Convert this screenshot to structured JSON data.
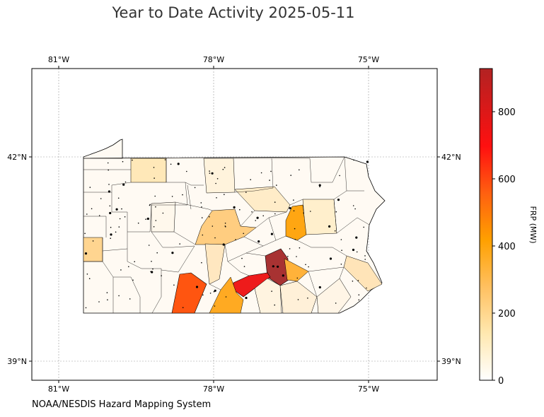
{
  "title": "Year to Date Activity 2025-05-11",
  "credit": "NOAA/NESDIS Hazard Mapping System",
  "map": {
    "region": "Pennsylvania",
    "lon_ticks": [
      "81°W",
      "78°W",
      "75°W"
    ],
    "lat_ticks": [
      "42°N",
      "39°N"
    ],
    "lon_range": [
      -81.5,
      -73.7
    ],
    "lat_range": [
      38.75,
      43.3
    ]
  },
  "colorbar": {
    "label": "FRP (MW)",
    "ticks": [
      "0",
      "200",
      "400",
      "600",
      "800"
    ],
    "range": [
      0,
      930
    ],
    "colors": [
      "#ffffff",
      "#ffe8b0",
      "#ffc060",
      "#ffa000",
      "#ff6010",
      "#ff1010",
      "#b22222"
    ]
  },
  "chart_data": {
    "type": "heatmap",
    "title": "Year to Date Activity 2025-05-11",
    "value_label": "FRP (MW)",
    "notable_counties": [
      {
        "location": "south-central (dark red)",
        "value": 920
      },
      {
        "location": "south-central (red)",
        "value": 650
      },
      {
        "location": "southwest-central (red-orange)",
        "value": 500
      },
      {
        "location": "south-central (orange)",
        "value": 330
      },
      {
        "location": "north-central-east (orange)",
        "value": 310
      },
      {
        "location": "central-east (orange)",
        "value": 290
      },
      {
        "location": "central (light orange)",
        "value": 160
      },
      {
        "location": "west (light orange)",
        "value": 130
      },
      {
        "location": "north-central (light orange)",
        "value": 100
      },
      {
        "location": "northwest-central (light orange)",
        "value": 90
      }
    ]
  }
}
